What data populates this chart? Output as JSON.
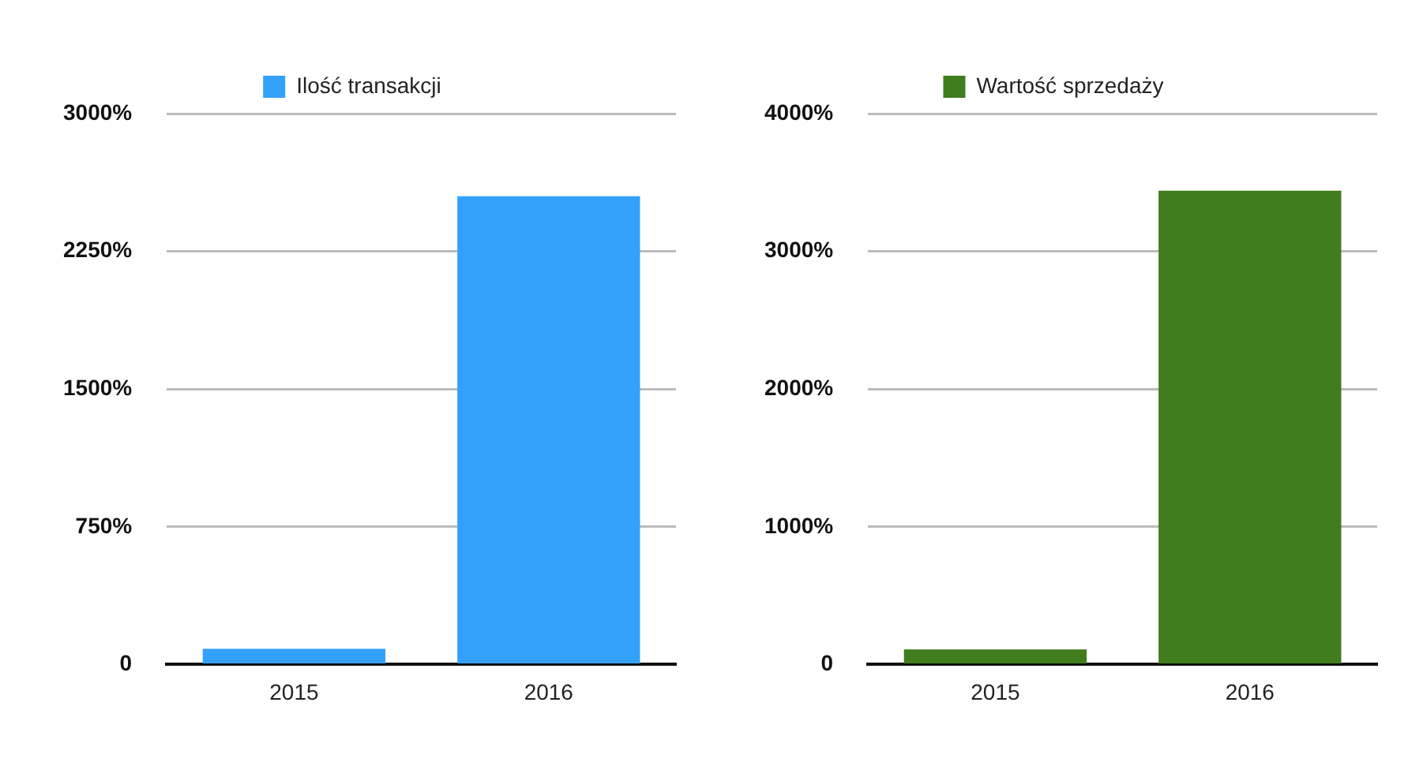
{
  "chart_data": [
    {
      "type": "bar",
      "categories": [
        "2015",
        "2016"
      ],
      "series": [
        {
          "name": "Ilość transakcji",
          "color": "#33a1fc",
          "values": [
            85,
            2550
          ]
        }
      ],
      "ylim": [
        0,
        3000
      ],
      "yticks": [
        0,
        {
          "value": 750,
          "label": "750%"
        },
        {
          "value": 1500,
          "label": "1500%"
        },
        {
          "value": 2250,
          "label": "2250%"
        },
        {
          "value": 3000,
          "label": "3000%"
        }
      ],
      "grid": "y",
      "legend": "top"
    },
    {
      "type": "bar",
      "categories": [
        "2015",
        "2016"
      ],
      "series": [
        {
          "name": "Wartość sprzedaży",
          "color": "#417c1d",
          "values": [
            110,
            3440
          ]
        }
      ],
      "ylim": [
        0,
        4000
      ],
      "yticks": [
        0,
        {
          "value": 1000,
          "label": "1000%"
        },
        {
          "value": 2000,
          "label": "2000%"
        },
        {
          "value": 3000,
          "label": "3000%"
        },
        {
          "value": 4000,
          "label": "4000%"
        }
      ],
      "grid": "y",
      "legend": "top"
    }
  ]
}
